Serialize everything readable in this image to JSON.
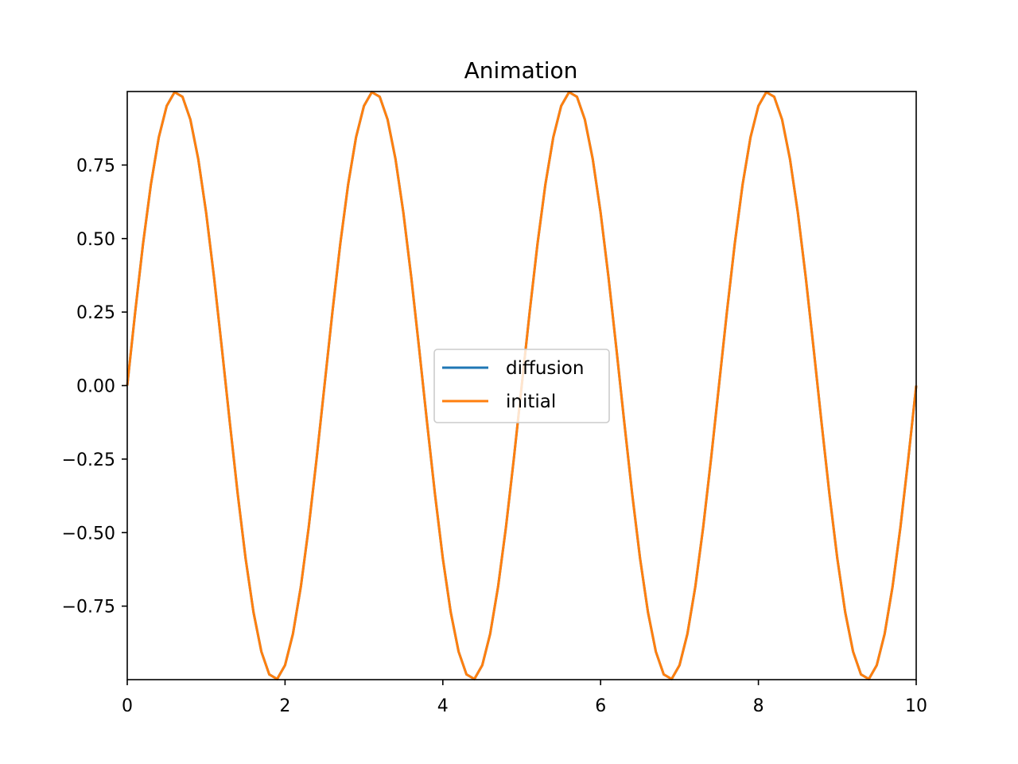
{
  "chart_data": {
    "type": "line",
    "title": "Animation",
    "xlabel": "",
    "ylabel": "",
    "xlim": [
      0,
      10
    ],
    "ylim": [
      -1.0,
      1.0
    ],
    "xticks": [
      0,
      2,
      4,
      6,
      8,
      10
    ],
    "xtick_labels": [
      "0",
      "2",
      "4",
      "6",
      "8",
      "10"
    ],
    "yticks": [
      -0.75,
      -0.5,
      -0.25,
      0.0,
      0.25,
      0.5,
      0.75
    ],
    "ytick_labels": [
      "−0.75",
      "−0.50",
      "−0.25",
      "0.00",
      "0.25",
      "0.50",
      "0.75"
    ],
    "grid": false,
    "legend_position": "center",
    "x": [
      0.0,
      0.1,
      0.2,
      0.3,
      0.4,
      0.5,
      0.6,
      0.7,
      0.8,
      0.9,
      1.0,
      1.1,
      1.2,
      1.3,
      1.4,
      1.5,
      1.6,
      1.7,
      1.8,
      1.9,
      2.0,
      2.1,
      2.2,
      2.3,
      2.4,
      2.5,
      2.6,
      2.7,
      2.8,
      2.9,
      3.0,
      3.1,
      3.2,
      3.3,
      3.4,
      3.5,
      3.6,
      3.7,
      3.8,
      3.9,
      4.0,
      4.1,
      4.2,
      4.3,
      4.4,
      4.5,
      4.6,
      4.7,
      4.8,
      4.9,
      5.0,
      5.1,
      5.2,
      5.3,
      5.4,
      5.5,
      5.6,
      5.7,
      5.8,
      5.9,
      6.0,
      6.1,
      6.2,
      6.3,
      6.4,
      6.5,
      6.6,
      6.7,
      6.8,
      6.9,
      7.0,
      7.1,
      7.2,
      7.3,
      7.4,
      7.5,
      7.6,
      7.7,
      7.8,
      7.9,
      8.0,
      8.1,
      8.2,
      8.3,
      8.4,
      8.5,
      8.6,
      8.7,
      8.8,
      8.9,
      9.0,
      9.1,
      9.2,
      9.3,
      9.4,
      9.5,
      9.6,
      9.7,
      9.8,
      9.9,
      10.0
    ],
    "series": [
      {
        "name": "diffusion",
        "color": "#1f77b4",
        "values": [
          0.0,
          0.2487,
          0.4818,
          0.6845,
          0.8443,
          0.951,
          0.998,
          0.9823,
          0.9048,
          0.7705,
          0.5878,
          0.3681,
          0.1253,
          -0.1253,
          -0.3681,
          -0.5878,
          -0.7705,
          -0.9048,
          -0.9823,
          -0.998,
          -0.951,
          -0.8443,
          -0.6845,
          -0.4818,
          -0.2487,
          0.0,
          0.2487,
          0.4818,
          0.6845,
          0.8443,
          0.951,
          0.998,
          0.9823,
          0.9048,
          0.7705,
          0.5878,
          0.3681,
          0.1253,
          -0.1253,
          -0.3681,
          -0.5878,
          -0.7705,
          -0.9048,
          -0.9823,
          -0.998,
          -0.951,
          -0.8443,
          -0.6845,
          -0.4818,
          -0.2487,
          0.0,
          0.2487,
          0.4818,
          0.6845,
          0.8443,
          0.951,
          0.998,
          0.9823,
          0.9048,
          0.7705,
          0.5878,
          0.3681,
          0.1253,
          -0.1253,
          -0.3681,
          -0.5878,
          -0.7705,
          -0.9048,
          -0.9823,
          -0.998,
          -0.951,
          -0.8443,
          -0.6845,
          -0.4818,
          -0.2487,
          0.0,
          0.2487,
          0.4818,
          0.6845,
          0.8443,
          0.951,
          0.998,
          0.9823,
          0.9048,
          0.7705,
          0.5878,
          0.3681,
          0.1253,
          -0.1253,
          -0.3681,
          -0.5878,
          -0.7705,
          -0.9048,
          -0.9823,
          -0.998,
          -0.951,
          -0.8443,
          -0.6845,
          -0.4818,
          -0.2487,
          0.0
        ]
      },
      {
        "name": "initial",
        "color": "#ff7f0e",
        "values": [
          0.0,
          0.2487,
          0.4818,
          0.6845,
          0.8443,
          0.951,
          0.998,
          0.9823,
          0.9048,
          0.7705,
          0.5878,
          0.3681,
          0.1253,
          -0.1253,
          -0.3681,
          -0.5878,
          -0.7705,
          -0.9048,
          -0.9823,
          -0.998,
          -0.951,
          -0.8443,
          -0.6845,
          -0.4818,
          -0.2487,
          0.0,
          0.2487,
          0.4818,
          0.6845,
          0.8443,
          0.951,
          0.998,
          0.9823,
          0.9048,
          0.7705,
          0.5878,
          0.3681,
          0.1253,
          -0.1253,
          -0.3681,
          -0.5878,
          -0.7705,
          -0.9048,
          -0.9823,
          -0.998,
          -0.951,
          -0.8443,
          -0.6845,
          -0.4818,
          -0.2487,
          0.0,
          0.2487,
          0.4818,
          0.6845,
          0.8443,
          0.951,
          0.998,
          0.9823,
          0.9048,
          0.7705,
          0.5878,
          0.3681,
          0.1253,
          -0.1253,
          -0.3681,
          -0.5878,
          -0.7705,
          -0.9048,
          -0.9823,
          -0.998,
          -0.951,
          -0.8443,
          -0.6845,
          -0.4818,
          -0.2487,
          0.0,
          0.2487,
          0.4818,
          0.6845,
          0.8443,
          0.951,
          0.998,
          0.9823,
          0.9048,
          0.7705,
          0.5878,
          0.3681,
          0.1253,
          -0.1253,
          -0.3681,
          -0.5878,
          -0.7705,
          -0.9048,
          -0.9823,
          -0.998,
          -0.951,
          -0.8443,
          -0.6845,
          -0.4818,
          -0.2487,
          0.0
        ]
      }
    ]
  }
}
